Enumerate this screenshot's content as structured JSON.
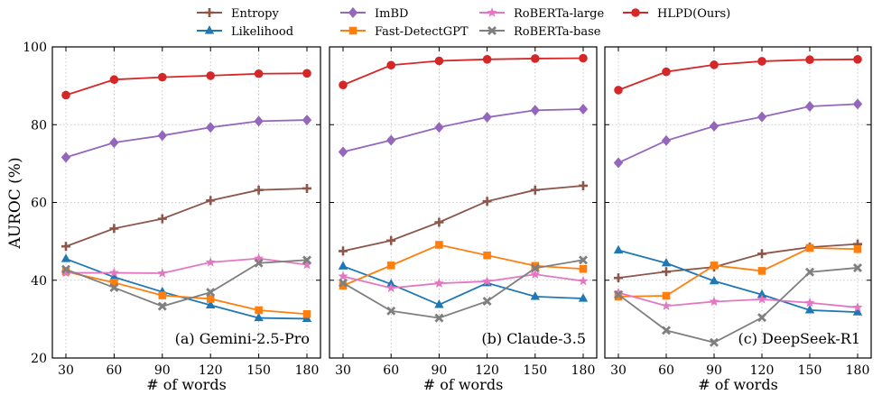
{
  "chart_data": {
    "type": "line",
    "ylabel": "AUROC (%)",
    "xlabel": "# of words",
    "ylim": [
      20,
      100
    ],
    "yticks": [
      20,
      40,
      60,
      80,
      100
    ],
    "categories": [
      30,
      60,
      90,
      120,
      150,
      180
    ],
    "grid": true,
    "legend": {
      "position": "top-center",
      "entries": [
        {
          "name": "Entropy",
          "color": "#8c564b",
          "marker": "plus"
        },
        {
          "name": "Likelihood",
          "color": "#1f77b4",
          "marker": "triangle"
        },
        {
          "name": "ImBD",
          "color": "#9467bd",
          "marker": "diamond"
        },
        {
          "name": "Fast-DetectGPT",
          "color": "#ff7f0e",
          "marker": "square"
        },
        {
          "name": "RoBERTa-large",
          "color": "#e377c2",
          "marker": "star"
        },
        {
          "name": "RoBERTa-base",
          "color": "#7f7f7f",
          "marker": "x"
        },
        {
          "name": "HLPD(Ours)",
          "color": "#d62728",
          "marker": "circle"
        }
      ]
    },
    "panels": [
      {
        "title": "(a) Gemini-2.5-Pro",
        "series": [
          {
            "name": "Entropy",
            "values": [
              48.7,
              53.3,
              55.8,
              60.5,
              63.2,
              63.6
            ]
          },
          {
            "name": "Likelihood",
            "values": [
              45.5,
              40.8,
              37.0,
              33.6,
              30.3,
              30.1
            ]
          },
          {
            "name": "ImBD",
            "values": [
              71.6,
              75.4,
              77.2,
              79.3,
              80.9,
              81.2
            ]
          },
          {
            "name": "Fast-DetectGPT",
            "values": [
              42.2,
              39.4,
              36.1,
              35.2,
              32.3,
              31.3
            ]
          },
          {
            "name": "RoBERTa-large",
            "values": [
              41.9,
              41.9,
              41.8,
              44.6,
              45.6,
              44.0
            ]
          },
          {
            "name": "RoBERTa-base",
            "values": [
              42.8,
              38.1,
              33.3,
              36.9,
              44.4,
              45.2
            ]
          },
          {
            "name": "HLPD(Ours)",
            "values": [
              87.6,
              91.6,
              92.2,
              92.6,
              93.1,
              93.2
            ]
          }
        ]
      },
      {
        "title": "(b) Claude-3.5",
        "series": [
          {
            "name": "Entropy",
            "values": [
              47.5,
              50.2,
              54.9,
              60.3,
              63.2,
              64.3
            ]
          },
          {
            "name": "Likelihood",
            "values": [
              43.6,
              39.0,
              33.7,
              39.3,
              35.8,
              35.3
            ]
          },
          {
            "name": "ImBD",
            "values": [
              73.0,
              76.0,
              79.3,
              81.9,
              83.7,
              84.0
            ]
          },
          {
            "name": "Fast-DetectGPT",
            "values": [
              38.6,
              43.8,
              49.1,
              46.4,
              43.7,
              42.9
            ]
          },
          {
            "name": "RoBERTa-large",
            "values": [
              41.0,
              38.0,
              39.2,
              39.7,
              41.5,
              39.8
            ]
          },
          {
            "name": "RoBERTa-base",
            "values": [
              39.3,
              32.1,
              30.3,
              34.6,
              43.1,
              45.2
            ]
          },
          {
            "name": "HLPD(Ours)",
            "values": [
              90.2,
              95.3,
              96.4,
              96.8,
              97.0,
              97.1
            ]
          }
        ]
      },
      {
        "title": "(c) DeepSeek-R1",
        "series": [
          {
            "name": "Entropy",
            "values": [
              40.6,
              42.2,
              43.4,
              46.8,
              48.5,
              49.3
            ]
          },
          {
            "name": "Likelihood",
            "values": [
              47.7,
              44.4,
              39.8,
              36.3,
              32.3,
              31.8
            ]
          },
          {
            "name": "ImBD",
            "values": [
              70.2,
              75.9,
              79.6,
              82.0,
              84.7,
              85.3
            ]
          },
          {
            "name": "Fast-DetectGPT",
            "values": [
              35.8,
              36.0,
              43.8,
              42.4,
              48.3,
              48.0
            ]
          },
          {
            "name": "RoBERTa-large",
            "values": [
              36.8,
              33.4,
              34.5,
              35.1,
              34.2,
              33.0
            ]
          },
          {
            "name": "RoBERTa-base",
            "values": [
              36.3,
              27.1,
              24.0,
              30.4,
              42.1,
              43.2
            ]
          },
          {
            "name": "HLPD(Ours)",
            "values": [
              88.9,
              93.6,
              95.4,
              96.3,
              96.7,
              96.8
            ]
          }
        ]
      }
    ]
  }
}
